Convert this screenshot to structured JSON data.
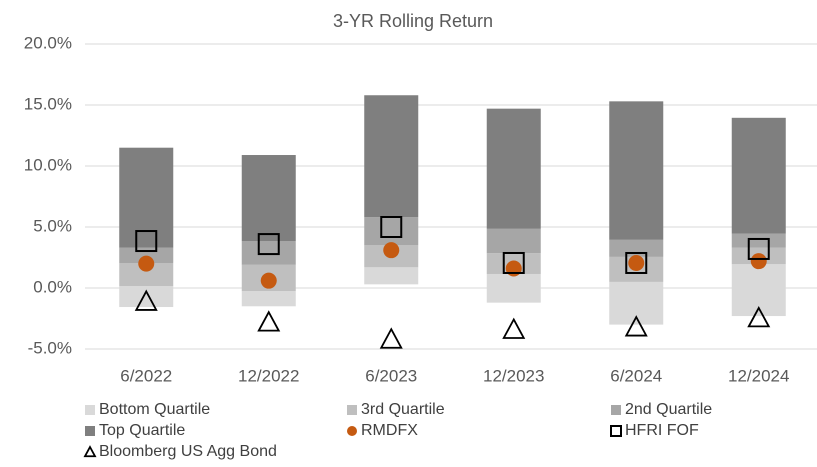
{
  "chart_data": {
    "type": "floating-bar",
    "title": "3-YR Rolling Return",
    "categories": [
      "6/2022",
      "12/2022",
      "6/2023",
      "12/2023",
      "6/2024",
      "12/2024"
    ],
    "ylim": [
      -5,
      20
    ],
    "yticks": [
      {
        "value": -5,
        "label": "-5.0%"
      },
      {
        "value": 0,
        "label": "0.0%"
      },
      {
        "value": 5,
        "label": "5.0%"
      },
      {
        "value": 10,
        "label": "10.0%"
      },
      {
        "value": 15,
        "label": "15.0%"
      },
      {
        "value": 20,
        "label": "20.0%"
      }
    ],
    "grid": true,
    "series": [
      {
        "name": "Bottom Quartile",
        "kind": "range",
        "color": "#d9d9d9",
        "values": [
          [
            -1.56,
            0.16
          ],
          [
            -1.5,
            -0.25
          ],
          [
            0.3,
            1.7
          ],
          [
            -1.2,
            1.15
          ],
          [
            -3.0,
            0.5
          ],
          [
            -2.3,
            1.95
          ]
        ]
      },
      {
        "name": "3rd Quartile",
        "kind": "range",
        "color": "#bfbfbf",
        "values": [
          [
            0.16,
            2.05
          ],
          [
            -0.25,
            1.9
          ],
          [
            1.7,
            3.5
          ],
          [
            1.15,
            2.85
          ],
          [
            0.5,
            2.55
          ],
          [
            1.95,
            3.3
          ]
        ]
      },
      {
        "name": "2nd Quartile",
        "kind": "range",
        "color": "#a6a6a6",
        "values": [
          [
            2.05,
            3.3
          ],
          [
            1.9,
            3.85
          ],
          [
            3.5,
            5.8
          ],
          [
            2.85,
            4.85
          ],
          [
            2.55,
            3.95
          ],
          [
            3.3,
            4.45
          ]
        ]
      },
      {
        "name": "Top Quartile",
        "kind": "range",
        "color": "#7f7f7f",
        "values": [
          [
            3.3,
            11.5
          ],
          [
            3.85,
            10.9
          ],
          [
            5.8,
            15.8
          ],
          [
            4.85,
            14.7
          ],
          [
            3.95,
            15.3
          ],
          [
            4.45,
            13.95
          ]
        ]
      },
      {
        "name": "RMDFX",
        "kind": "circle",
        "color": "#c55a11",
        "values": [
          2.0,
          0.6,
          3.1,
          1.6,
          2.05,
          2.2
        ]
      },
      {
        "name": "HFRI FOF",
        "kind": "square",
        "color": "#000000",
        "values": [
          3.85,
          3.6,
          5.0,
          2.05,
          2.05,
          3.2
        ]
      },
      {
        "name": "Bloomberg US Agg Bond",
        "kind": "triangle",
        "color": "#000000",
        "values": [
          -1.1,
          -2.8,
          -4.2,
          -3.4,
          -3.2,
          -2.45
        ]
      }
    ]
  }
}
